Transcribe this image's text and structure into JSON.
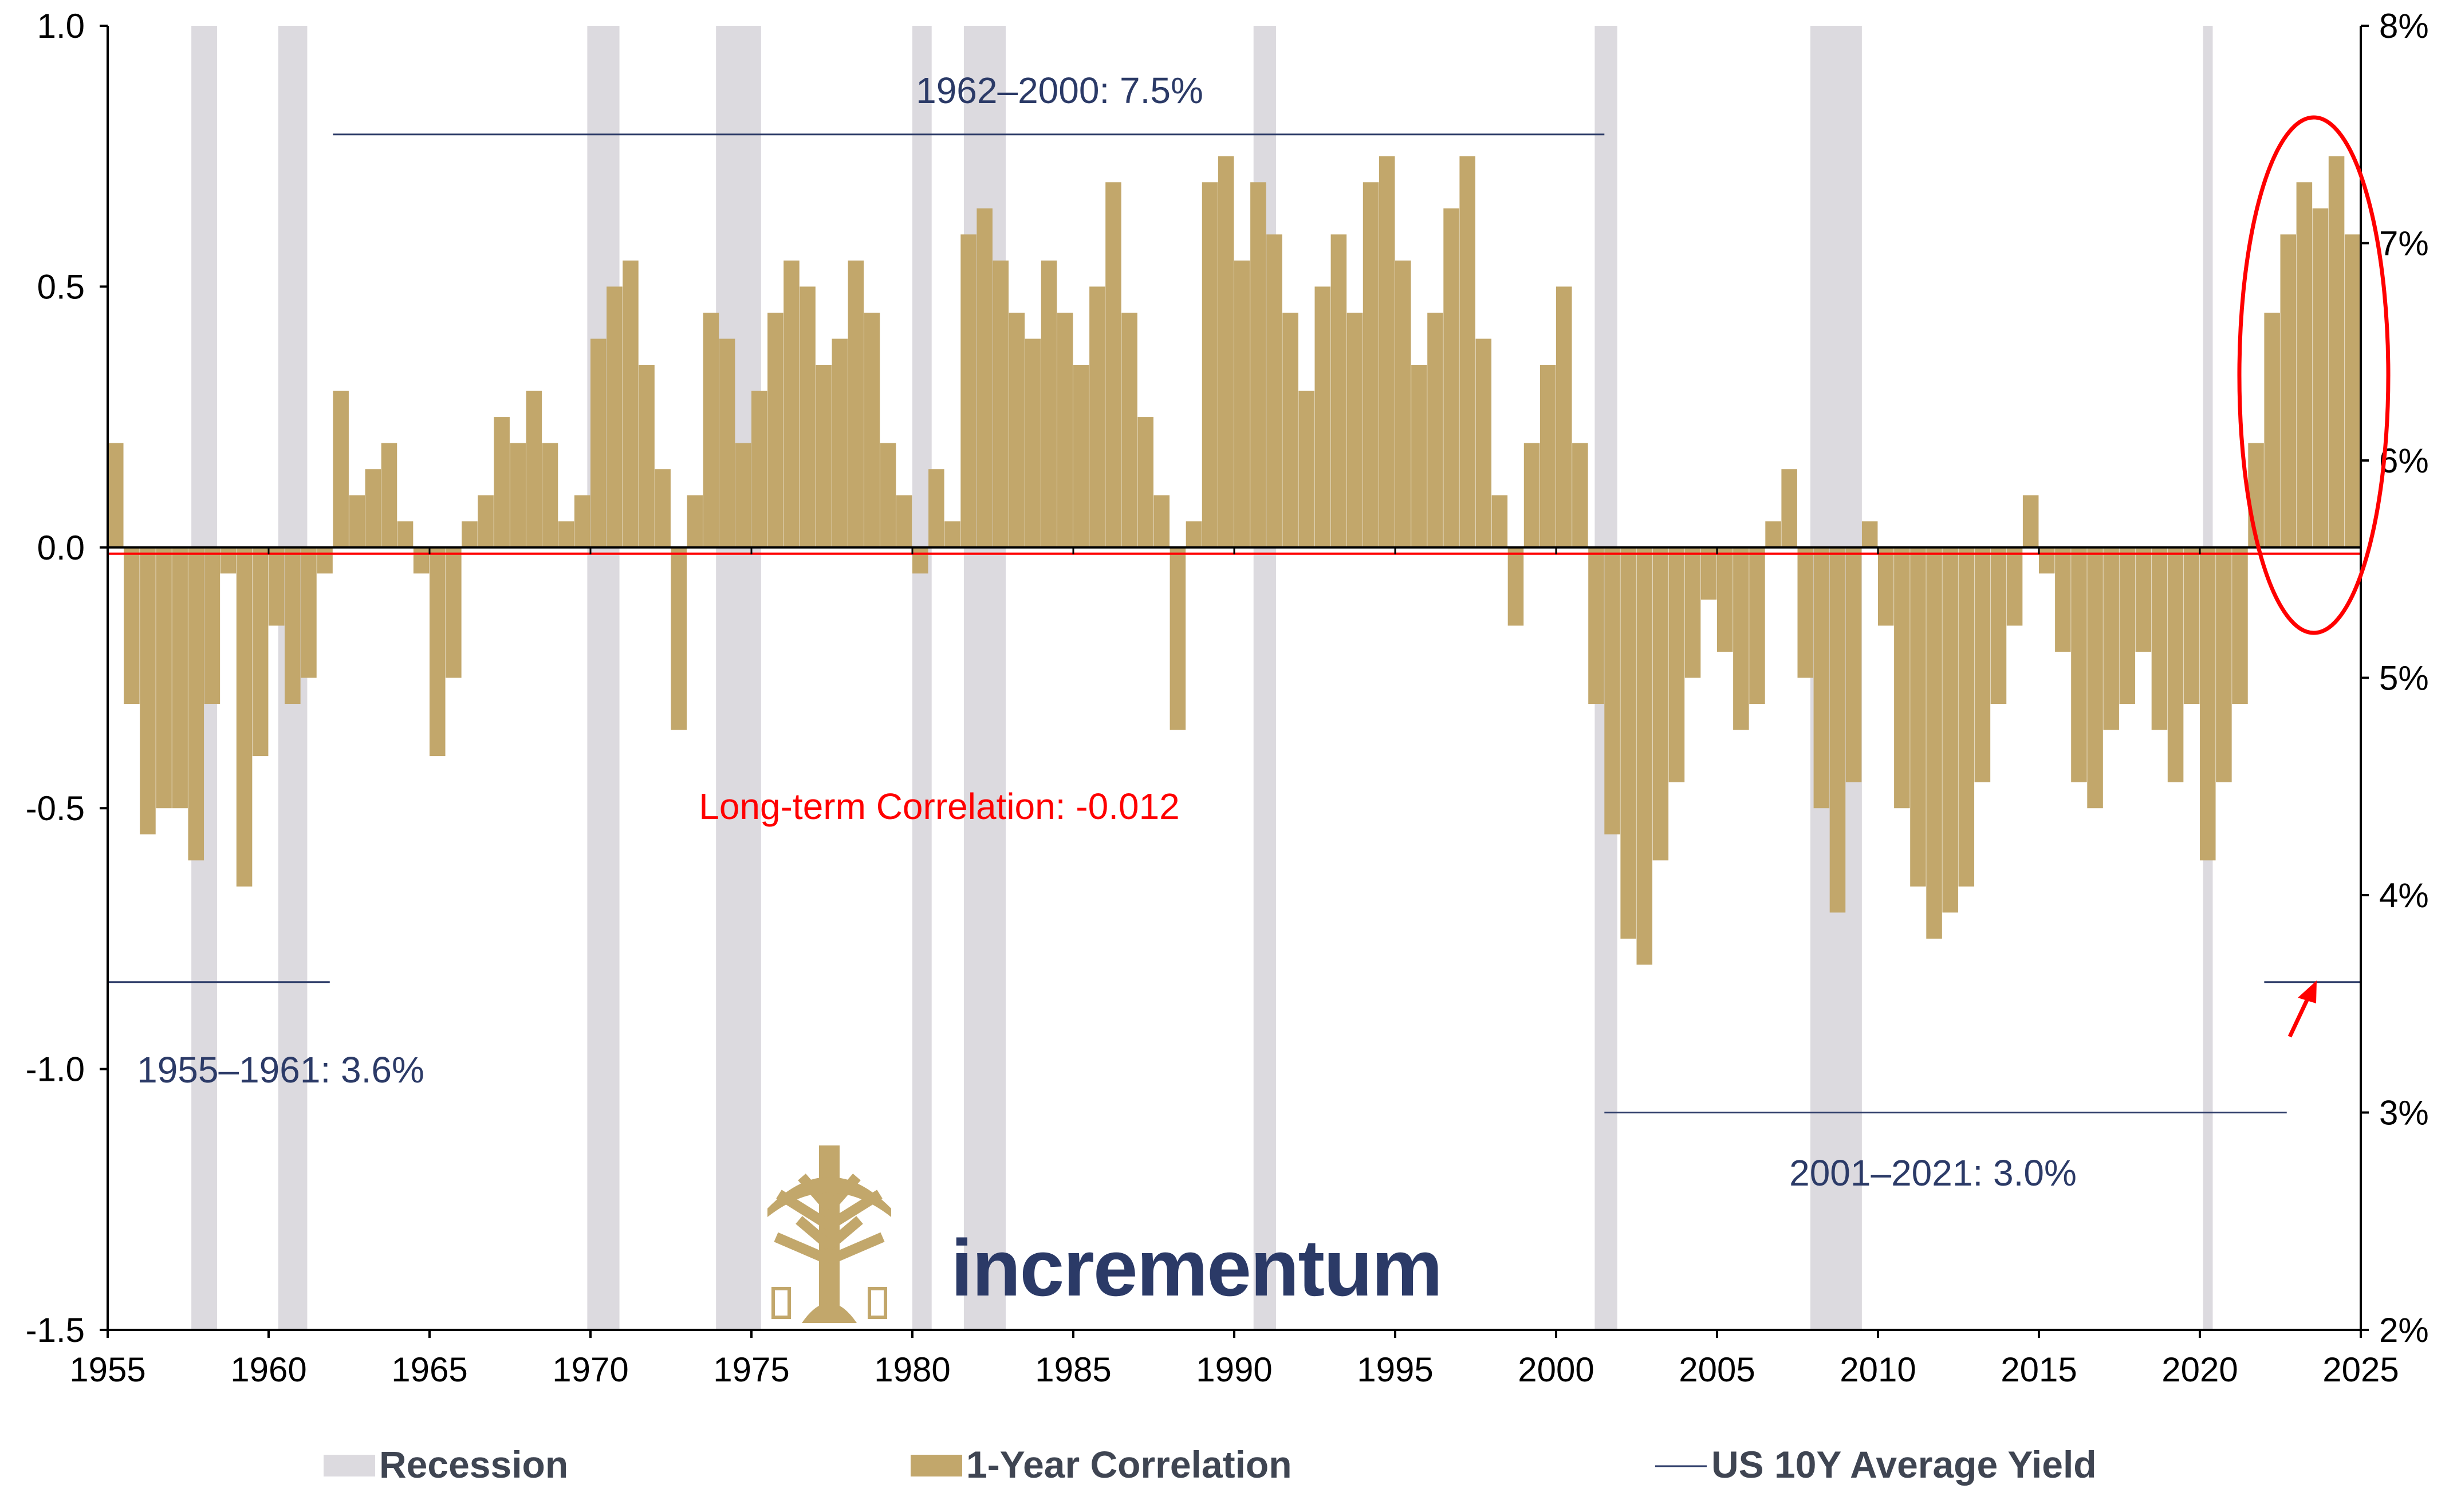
{
  "chart_data": {
    "type": "bar",
    "colors": {
      "bars": "#c2a76b",
      "recession": "#dcdadf",
      "yield_line": "#2b3a67",
      "correlation_line": "#ff0000",
      "highlight": "#ff0000",
      "annotation_text": "#2b3a67"
    },
    "x_range": [
      1955,
      2025
    ],
    "x_ticks": [
      "1955",
      "1960",
      "1965",
      "1970",
      "1975",
      "1980",
      "1985",
      "1990",
      "1995",
      "2000",
      "2005",
      "2010",
      "2015",
      "2020",
      "2025"
    ],
    "y_left": {
      "range": [
        -1.5,
        1.0
      ],
      "ticks": [
        "1.0",
        "0.5",
        "0.0",
        "-0.5",
        "-1.0",
        "-1.5"
      ],
      "tick_values": [
        1.0,
        0.5,
        0.0,
        -0.5,
        -1.0,
        -1.5
      ]
    },
    "y_right": {
      "range": [
        2,
        8
      ],
      "ticks": [
        "8%",
        "7%",
        "6%",
        "5%",
        "4%",
        "3%",
        "2%"
      ],
      "tick_values": [
        8,
        7,
        6,
        5,
        4,
        3,
        2
      ]
    },
    "recessions": [
      [
        1957.6,
        1958.4
      ],
      [
        1960.3,
        1961.2
      ],
      [
        1969.9,
        1970.9
      ],
      [
        1973.9,
        1975.3
      ],
      [
        1980.0,
        1980.6
      ],
      [
        1981.6,
        1982.9
      ],
      [
        1990.6,
        1991.3
      ],
      [
        2001.2,
        2001.9
      ],
      [
        2007.9,
        2009.5
      ],
      [
        2020.1,
        2020.4
      ]
    ],
    "correlation_series": {
      "name": "1-Year Correlation",
      "x": [
        1955.0,
        1955.5,
        1956.0,
        1956.5,
        1957.0,
        1957.5,
        1958.0,
        1958.5,
        1959.0,
        1959.5,
        1960.0,
        1960.5,
        1961.0,
        1961.5,
        1962.0,
        1962.5,
        1963.0,
        1963.5,
        1964.0,
        1964.5,
        1965.0,
        1965.5,
        1966.0,
        1966.5,
        1967.0,
        1967.5,
        1968.0,
        1968.5,
        1969.0,
        1969.5,
        1970.0,
        1970.5,
        1971.0,
        1971.5,
        1972.0,
        1972.5,
        1973.0,
        1973.5,
        1974.0,
        1974.5,
        1975.0,
        1975.5,
        1976.0,
        1976.5,
        1977.0,
        1977.5,
        1978.0,
        1978.5,
        1979.0,
        1979.5,
        1980.0,
        1980.5,
        1981.0,
        1981.5,
        1982.0,
        1982.5,
        1983.0,
        1983.5,
        1984.0,
        1984.5,
        1985.0,
        1985.5,
        1986.0,
        1986.5,
        1987.0,
        1987.5,
        1988.0,
        1988.5,
        1989.0,
        1989.5,
        1990.0,
        1990.5,
        1991.0,
        1991.5,
        1992.0,
        1992.5,
        1993.0,
        1993.5,
        1994.0,
        1994.5,
        1995.0,
        1995.5,
        1996.0,
        1996.5,
        1997.0,
        1997.5,
        1998.0,
        1998.5,
        1999.0,
        1999.5,
        2000.0,
        2000.5,
        2001.0,
        2001.5,
        2002.0,
        2002.5,
        2003.0,
        2003.5,
        2004.0,
        2004.5,
        2005.0,
        2005.5,
        2006.0,
        2006.5,
        2007.0,
        2007.5,
        2008.0,
        2008.5,
        2009.0,
        2009.5,
        2010.0,
        2010.5,
        2011.0,
        2011.5,
        2012.0,
        2012.5,
        2013.0,
        2013.5,
        2014.0,
        2014.5,
        2015.0,
        2015.5,
        2016.0,
        2016.5,
        2017.0,
        2017.5,
        2018.0,
        2018.5,
        2019.0,
        2019.5,
        2020.0,
        2020.5,
        2021.0,
        2021.5,
        2022.0,
        2022.5,
        2023.0,
        2023.5,
        2024.0,
        2024.5
      ],
      "values": [
        0.2,
        -0.3,
        -0.55,
        -0.5,
        -0.5,
        -0.6,
        -0.3,
        -0.05,
        -0.65,
        -0.4,
        -0.15,
        -0.3,
        -0.25,
        -0.05,
        0.3,
        0.1,
        0.15,
        0.2,
        0.05,
        -0.05,
        -0.4,
        -0.25,
        0.05,
        0.1,
        0.25,
        0.2,
        0.3,
        0.2,
        0.05,
        0.1,
        0.4,
        0.5,
        0.55,
        0.35,
        0.15,
        -0.35,
        0.1,
        0.45,
        0.4,
        0.2,
        0.3,
        0.45,
        0.55,
        0.5,
        0.35,
        0.4,
        0.55,
        0.45,
        0.2,
        0.1,
        -0.05,
        0.15,
        0.05,
        0.6,
        0.65,
        0.55,
        0.45,
        0.4,
        0.55,
        0.45,
        0.35,
        0.5,
        0.7,
        0.45,
        0.25,
        0.1,
        -0.35,
        0.05,
        0.7,
        0.75,
        0.55,
        0.7,
        0.6,
        0.45,
        0.3,
        0.5,
        0.6,
        0.45,
        0.7,
        0.75,
        0.55,
        0.35,
        0.45,
        0.65,
        0.75,
        0.4,
        0.1,
        -0.15,
        0.2,
        0.35,
        0.5,
        0.2,
        -0.3,
        -0.55,
        -0.75,
        -0.8,
        -0.6,
        -0.45,
        -0.25,
        -0.1,
        -0.2,
        -0.35,
        -0.3,
        0.05,
        0.15,
        -0.25,
        -0.5,
        -0.7,
        -0.45,
        0.05,
        -0.15,
        -0.5,
        -0.65,
        -0.75,
        -0.7,
        -0.65,
        -0.45,
        -0.3,
        -0.15,
        0.1,
        -0.05,
        -0.2,
        -0.45,
        -0.5,
        -0.35,
        -0.3,
        -0.2,
        -0.35,
        -0.45,
        -0.3,
        -0.6,
        -0.45,
        -0.3,
        0.2,
        0.45,
        0.6,
        0.7,
        0.65,
        0.75,
        0.6
      ]
    },
    "yield_series": {
      "name": "US 10Y Average Yield",
      "segments": [
        {
          "label": "1955–1961: 3.6%",
          "x": [
            1955,
            1961.9
          ],
          "value": 3.6
        },
        {
          "label": "1962–2000: 7.5%",
          "x": [
            1962,
            2001.5
          ],
          "value": 7.5
        },
        {
          "label": "2001–2021: 3.0%",
          "x": [
            2001.5,
            2022.7
          ],
          "value": 3.0
        },
        {
          "label": "",
          "x": [
            2022.0,
            2025.0
          ],
          "value": 3.6
        }
      ]
    },
    "long_term_correlation": {
      "label": "Long-term Correlation: -0.012",
      "value": -0.012
    },
    "legend": {
      "placement": "bottom",
      "items": [
        "Recession",
        "1-Year Correlation",
        "US 10Y Average Yield"
      ]
    }
  },
  "logo": {
    "text": "incrementum"
  }
}
